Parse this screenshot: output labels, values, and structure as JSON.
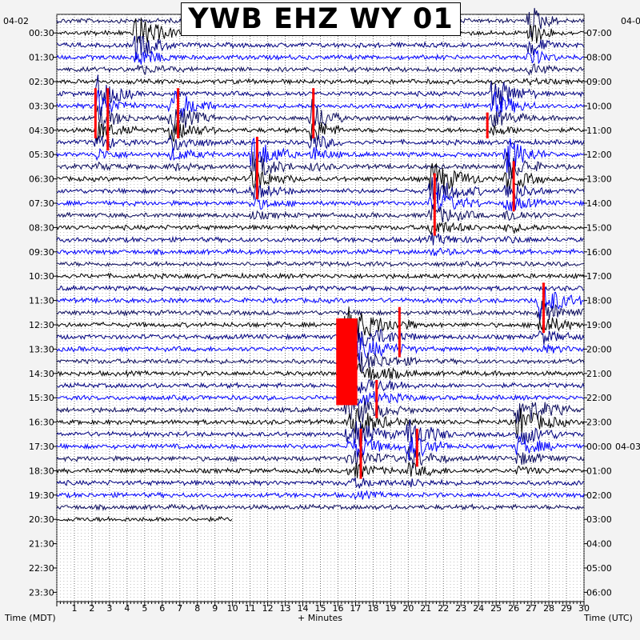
{
  "title": "YWB EHZ WY 01",
  "footer": {
    "left": "Time (MDT)",
    "center": "+ Minutes",
    "right": "Time (UTC)"
  },
  "colors": {
    "background": "#f3f3f3",
    "plot_bg": "#ffffff",
    "trace_dark": "#0b0b5c",
    "trace_black": "#000000",
    "trace_navy": "#000080",
    "trace_blue": "#0000ff",
    "clip": "#ff0000"
  },
  "chart_data": {
    "type": "line",
    "title": "YWB EHZ WY 01",
    "xlabel": "+ Minutes",
    "ylabel_left": "Time (MDT)",
    "ylabel_right": "Time (UTC)",
    "xlim": [
      0,
      30
    ],
    "x_ticks": [
      1,
      2,
      3,
      4,
      5,
      6,
      7,
      8,
      9,
      10,
      11,
      12,
      13,
      14,
      15,
      16,
      17,
      18,
      19,
      20,
      21,
      22,
      23,
      24,
      25,
      26,
      27,
      28,
      29,
      30
    ],
    "grid": true,
    "date_left": "04-02",
    "date_right": "04-0",
    "date_right_change": "04-03",
    "left_hour_labels": [
      "00:30",
      "01:30",
      "02:30",
      "03:30",
      "04:30",
      "05:30",
      "06:30",
      "07:30",
      "08:30",
      "09:30",
      "10:30",
      "11:30",
      "12:30",
      "13:30",
      "14:30",
      "15:30",
      "16:30",
      "17:30",
      "18:30",
      "19:30",
      "20:30",
      "21:30",
      "22:30",
      "23:30"
    ],
    "right_hour_labels": [
      "07:00",
      "08:00",
      "09:00",
      "10:00",
      "11:00",
      "12:00",
      "13:00",
      "14:00",
      "15:00",
      "16:00",
      "17:00",
      "18:00",
      "19:00",
      "20:00",
      "21:00",
      "22:00",
      "23:00",
      "00:00",
      "01:00",
      "02:00",
      "03:00",
      "04:00",
      "05:00",
      "06:00"
    ],
    "trace_count": 42,
    "last_trace_end_minute": 10,
    "events": [
      {
        "start_trace": 1,
        "minute": 4.5,
        "duration": 2.5,
        "rows": 4
      },
      {
        "start_trace": 0,
        "minute": 26.9,
        "duration": 1.6,
        "rows": 6
      },
      {
        "start_trace": 6,
        "minute": 2.3,
        "duration": 2.2,
        "rows": 7
      },
      {
        "start_trace": 7,
        "minute": 6.5,
        "duration": 2.5,
        "rows": 6
      },
      {
        "start_trace": 8,
        "minute": 14.5,
        "duration": 1.8,
        "rows": 5
      },
      {
        "start_trace": 6,
        "minute": 24.8,
        "duration": 2.5,
        "rows": 4
      },
      {
        "start_trace": 11,
        "minute": 11.1,
        "duration": 2.5,
        "rows": 6
      },
      {
        "start_trace": 13,
        "minute": 21.3,
        "duration": 3.0,
        "rows": 7
      },
      {
        "start_trace": 11,
        "minute": 25.6,
        "duration": 2.2,
        "rows": 8
      },
      {
        "start_trace": 23,
        "minute": 27.5,
        "duration": 2.5,
        "rows": 5
      },
      {
        "start_trace": 25,
        "minute": 16.5,
        "duration": 4.0,
        "rows": 14
      },
      {
        "start_trace": 32,
        "minute": 17.0,
        "duration": 2.5,
        "rows": 8
      },
      {
        "start_trace": 34,
        "minute": 20.0,
        "duration": 2.5,
        "rows": 5
      },
      {
        "start_trace": 32,
        "minute": 26.2,
        "duration": 3.0,
        "rows": 6
      }
    ],
    "clipped_marks": [
      {
        "trace": 6,
        "minute": 2.2,
        "rows": 4
      },
      {
        "trace": 6,
        "minute": 2.9,
        "rows": 5
      },
      {
        "trace": 6,
        "minute": 6.9,
        "rows": 4
      },
      {
        "trace": 6,
        "minute": 14.6,
        "rows": 4
      },
      {
        "trace": 10,
        "minute": 11.4,
        "rows": 5
      },
      {
        "trace": 13,
        "minute": 21.5,
        "rows": 5
      },
      {
        "trace": 8,
        "minute": 24.5,
        "rows": 2
      },
      {
        "trace": 12,
        "minute": 26.0,
        "rows": 4
      },
      {
        "trace": 22,
        "minute": 27.7,
        "rows": 4
      },
      {
        "trace": 24,
        "minute": 19.5,
        "rows": 4
      },
      {
        "trace": 25,
        "minute": 16.8,
        "rows": 6
      },
      {
        "trace": 30,
        "minute": 18.2,
        "rows": 3
      },
      {
        "trace": 34,
        "minute": 17.3,
        "rows": 4
      },
      {
        "trace": 34,
        "minute": 20.5,
        "rows": 3
      }
    ],
    "clip_block": {
      "trace_from": 25,
      "trace_to": 32,
      "minute_from": 15.9,
      "minute_to": 17.1
    }
  }
}
